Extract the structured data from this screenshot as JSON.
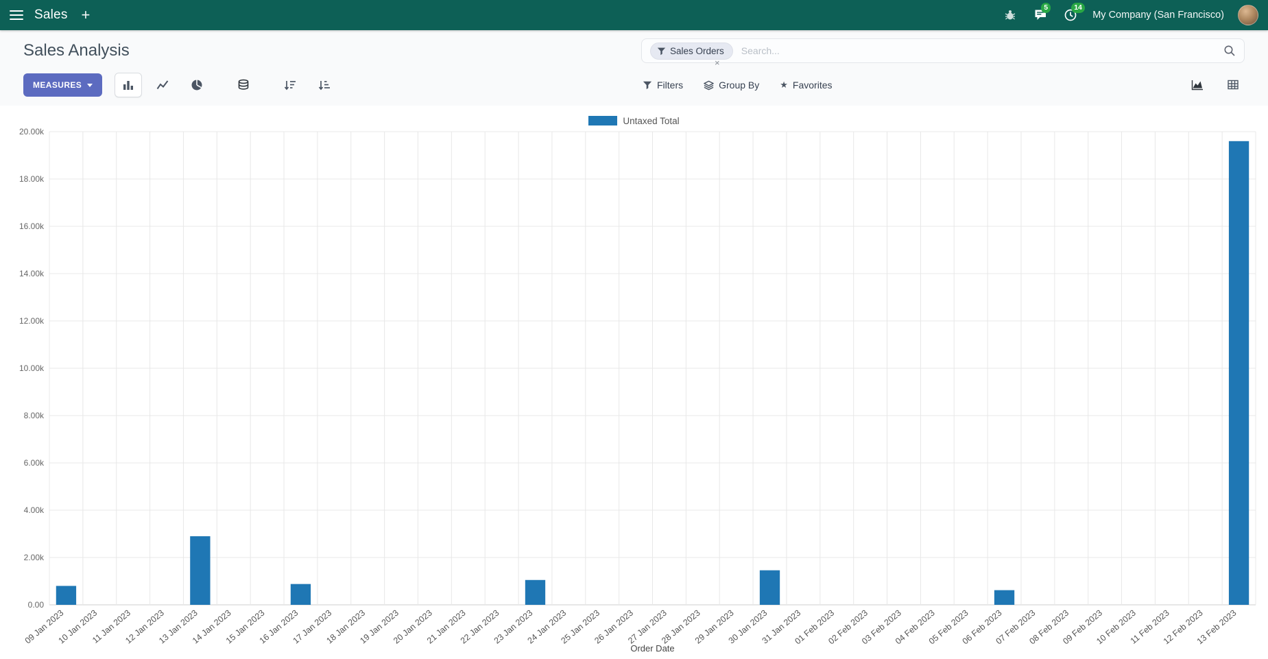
{
  "colors": {
    "navbar-bg": "#0d6056",
    "accent": "#5C6BC0",
    "badge": "#28a745",
    "panel-bg": "#f9fafb"
  },
  "navbar": {
    "app": "Sales",
    "plus": "+",
    "message_badge": "5",
    "activity_badge": "14",
    "company": "My Company (San Francisco)"
  },
  "control_panel": {
    "title": "Sales Analysis",
    "search": {
      "facet_label": "Sales Orders",
      "remove": "×",
      "placeholder": "Search..."
    },
    "measures": "MEASURES",
    "filters": "Filters",
    "group_by": "Group By",
    "favorites": "Favorites",
    "star": "★"
  },
  "chart_data": {
    "type": "bar",
    "title": "",
    "legend": [
      {
        "name": "Untaxed Total",
        "color": "#1f77b4"
      }
    ],
    "xlabel": "Order Date",
    "ylabel": "",
    "ylim": [
      0,
      20000
    ],
    "grid": true,
    "legend_position": "top",
    "ytick_values": [
      0,
      2000,
      4000,
      6000,
      8000,
      10000,
      12000,
      14000,
      16000,
      18000,
      20000
    ],
    "ytick_labels": [
      "0.00",
      "2.00k",
      "4.00k",
      "6.00k",
      "8.00k",
      "10.00k",
      "12.00k",
      "14.00k",
      "16.00k",
      "18.00k",
      "20.00k"
    ],
    "categories": [
      "09 Jan 2023",
      "10 Jan 2023",
      "11 Jan 2023",
      "12 Jan 2023",
      "13 Jan 2023",
      "14 Jan 2023",
      "15 Jan 2023",
      "16 Jan 2023",
      "17 Jan 2023",
      "18 Jan 2023",
      "19 Jan 2023",
      "20 Jan 2023",
      "21 Jan 2023",
      "22 Jan 2023",
      "23 Jan 2023",
      "24 Jan 2023",
      "25 Jan 2023",
      "26 Jan 2023",
      "27 Jan 2023",
      "28 Jan 2023",
      "29 Jan 2023",
      "30 Jan 2023",
      "31 Jan 2023",
      "01 Feb 2023",
      "02 Feb 2023",
      "03 Feb 2023",
      "04 Feb 2023",
      "05 Feb 2023",
      "06 Feb 2023",
      "07 Feb 2023",
      "08 Feb 2023",
      "09 Feb 2023",
      "10 Feb 2023",
      "11 Feb 2023",
      "12 Feb 2023",
      "13 Feb 2023"
    ],
    "series": [
      {
        "name": "Untaxed Total",
        "values": [
          800,
          0,
          0,
          0,
          2900,
          0,
          0,
          880,
          0,
          0,
          0,
          0,
          0,
          0,
          1050,
          0,
          0,
          0,
          0,
          0,
          0,
          1460,
          0,
          0,
          0,
          0,
          0,
          0,
          620,
          0,
          0,
          0,
          0,
          0,
          0,
          19600
        ]
      }
    ]
  }
}
